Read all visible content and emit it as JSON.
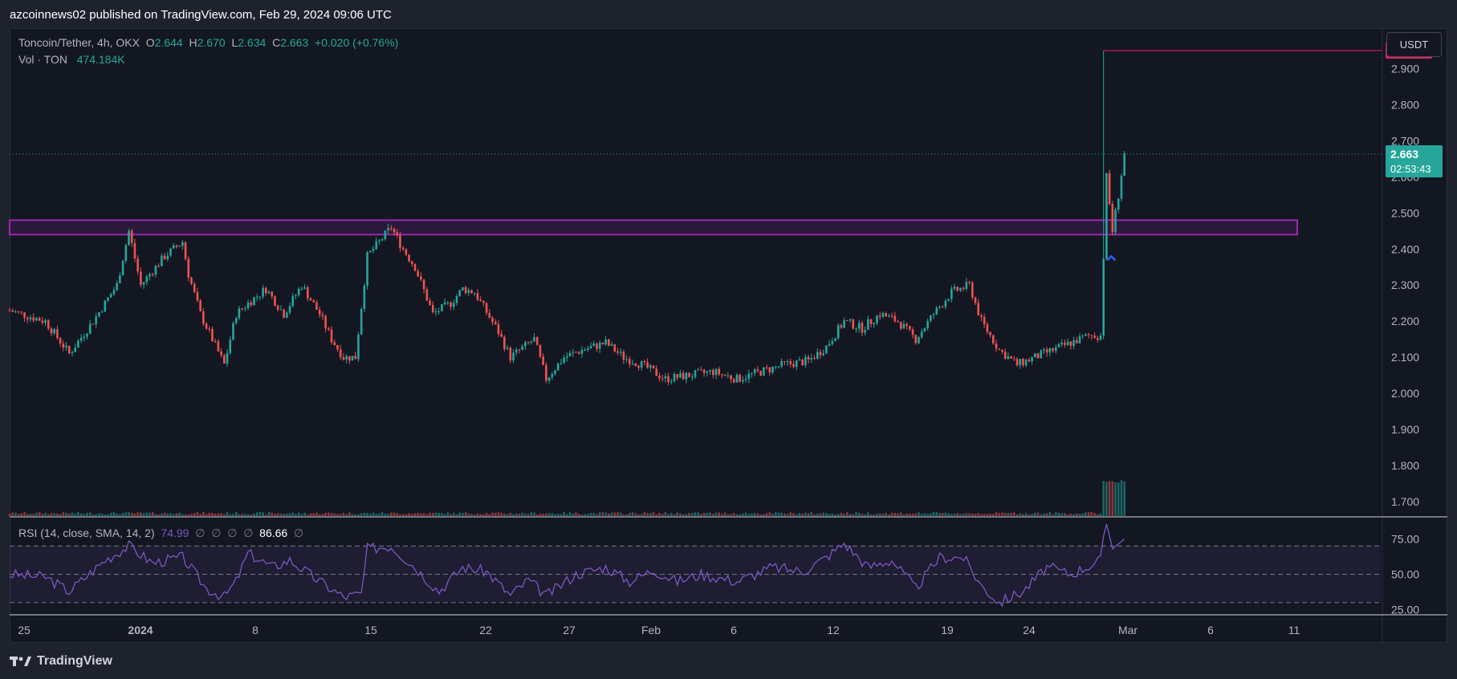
{
  "header": {
    "published_text": "azcoinnews02 published on TradingView.com, Feb 29, 2024 09:06 UTC"
  },
  "legend": {
    "symbol": "Toncoin/Tether, 4h, OKX",
    "o_label": "O",
    "o_value": "2.644",
    "h_label": "H",
    "h_value": "2.670",
    "l_label": "L",
    "l_value": "2.634",
    "c_label": "C",
    "c_value": "2.663",
    "change": "+0.020 (+0.76%)",
    "vol_label": "Vol · TON",
    "vol_value": "474.184K"
  },
  "rsi_legend": {
    "label": "RSI (14, close, SMA, 14, 2)",
    "value": "74.99",
    "empty_marks": [
      "∅",
      "∅",
      "∅",
      "∅"
    ],
    "sma_value": "86.66",
    "last_mark": "∅"
  },
  "unit_button": "USDT",
  "footer": {
    "brand": "TradingView"
  },
  "colors": {
    "up": "#26a69a",
    "down": "#ef5350",
    "zone": "#9c27b0",
    "target": "#e91e63",
    "rsi_line": "#7e57c2",
    "arrow": "#2962ff"
  },
  "chart_data": {
    "type": "candlestick",
    "price_axis": {
      "ylim": [
        1.66,
        3.01
      ],
      "ticks": [
        "1.700",
        "1.800",
        "1.900",
        "2.000",
        "2.100",
        "2.200",
        "2.300",
        "2.400",
        "2.500",
        "2.600",
        "2.700",
        "2.800",
        "2.900"
      ],
      "current_price": "2.663",
      "countdown": "02:53:43",
      "target_price": "2.950"
    },
    "time_axis": {
      "labels": [
        "25",
        "2024",
        "8",
        "15",
        "22",
        "27",
        "Feb",
        "6",
        "12",
        "19",
        "24",
        "Mar",
        "6",
        "11"
      ],
      "bold_labels": [
        "2024"
      ]
    },
    "resistance_zone": {
      "from": 2.44,
      "to": 2.48
    },
    "target_level": 2.95,
    "rsi_axis": {
      "ylim": [
        22,
        90
      ],
      "ticks": [
        "25.00",
        "50.00",
        "75.00"
      ],
      "upper_band": 70,
      "middle_band": 50,
      "lower_band": 30
    },
    "price_series": [
      {
        "t": 0,
        "p": 2.23
      },
      {
        "t": 6,
        "p": 2.2
      },
      {
        "t": 10,
        "p": 2.11
      },
      {
        "t": 14,
        "p": 2.2
      },
      {
        "t": 18,
        "p": 2.3
      },
      {
        "t": 20,
        "p": 2.45
      },
      {
        "t": 22,
        "p": 2.3
      },
      {
        "t": 26,
        "p": 2.38
      },
      {
        "t": 29,
        "p": 2.42
      },
      {
        "t": 30,
        "p": 2.33
      },
      {
        "t": 32,
        "p": 2.22
      },
      {
        "t": 36,
        "p": 2.08
      },
      {
        "t": 38,
        "p": 2.22
      },
      {
        "t": 40,
        "p": 2.25
      },
      {
        "t": 43,
        "p": 2.29
      },
      {
        "t": 46,
        "p": 2.22
      },
      {
        "t": 49,
        "p": 2.3
      },
      {
        "t": 52,
        "p": 2.22
      },
      {
        "t": 54,
        "p": 2.15
      },
      {
        "t": 56,
        "p": 2.1
      },
      {
        "t": 58,
        "p": 2.1
      },
      {
        "t": 60,
        "p": 2.38
      },
      {
        "t": 62,
        "p": 2.42
      },
      {
        "t": 64,
        "p": 2.46
      },
      {
        "t": 66,
        "p": 2.4
      },
      {
        "t": 68,
        "p": 2.35
      },
      {
        "t": 71,
        "p": 2.22
      },
      {
        "t": 74,
        "p": 2.25
      },
      {
        "t": 76,
        "p": 2.29
      },
      {
        "t": 78,
        "p": 2.28
      },
      {
        "t": 82,
        "p": 2.17
      },
      {
        "t": 84,
        "p": 2.1
      },
      {
        "t": 88,
        "p": 2.15
      },
      {
        "t": 90,
        "p": 2.04
      },
      {
        "t": 93,
        "p": 2.1
      },
      {
        "t": 96,
        "p": 2.12
      },
      {
        "t": 100,
        "p": 2.14
      },
      {
        "t": 103,
        "p": 2.1
      },
      {
        "t": 106,
        "p": 2.08
      },
      {
        "t": 110,
        "p": 2.04
      },
      {
        "t": 114,
        "p": 2.05
      },
      {
        "t": 118,
        "p": 2.06
      },
      {
        "t": 122,
        "p": 2.04
      },
      {
        "t": 126,
        "p": 2.06
      },
      {
        "t": 130,
        "p": 2.08
      },
      {
        "t": 134,
        "p": 2.09
      },
      {
        "t": 137,
        "p": 2.13
      },
      {
        "t": 140,
        "p": 2.2
      },
      {
        "t": 143,
        "p": 2.18
      },
      {
        "t": 146,
        "p": 2.22
      },
      {
        "t": 149,
        "p": 2.2
      },
      {
        "t": 152,
        "p": 2.15
      },
      {
        "t": 155,
        "p": 2.22
      },
      {
        "t": 158,
        "p": 2.28
      },
      {
        "t": 161,
        "p": 2.3
      },
      {
        "t": 163,
        "p": 2.2
      },
      {
        "t": 166,
        "p": 2.12
      },
      {
        "t": 169,
        "p": 2.08
      },
      {
        "t": 172,
        "p": 2.1
      },
      {
        "t": 175,
        "p": 2.12
      },
      {
        "t": 178,
        "p": 2.14
      },
      {
        "t": 181,
        "p": 2.16
      },
      {
        "t": 183,
        "p": 2.16
      },
      {
        "t": 184,
        "p": 2.6
      },
      {
        "t": 185,
        "p": 2.45
      },
      {
        "t": 186,
        "p": 2.55
      },
      {
        "t": 187,
        "p": 2.663
      }
    ],
    "rsi_series": [
      {
        "t": 0,
        "r": 50
      },
      {
        "t": 6,
        "r": 48
      },
      {
        "t": 10,
        "r": 38
      },
      {
        "t": 16,
        "r": 60
      },
      {
        "t": 20,
        "r": 70
      },
      {
        "t": 24,
        "r": 58
      },
      {
        "t": 29,
        "r": 62
      },
      {
        "t": 33,
        "r": 40
      },
      {
        "t": 36,
        "r": 34
      },
      {
        "t": 38,
        "r": 45
      },
      {
        "t": 40,
        "r": 65
      },
      {
        "t": 44,
        "r": 55
      },
      {
        "t": 47,
        "r": 60
      },
      {
        "t": 52,
        "r": 45
      },
      {
        "t": 56,
        "r": 34
      },
      {
        "t": 59,
        "r": 36
      },
      {
        "t": 60,
        "r": 68
      },
      {
        "t": 64,
        "r": 70
      },
      {
        "t": 68,
        "r": 55
      },
      {
        "t": 72,
        "r": 38
      },
      {
        "t": 76,
        "r": 55
      },
      {
        "t": 80,
        "r": 52
      },
      {
        "t": 84,
        "r": 35
      },
      {
        "t": 87,
        "r": 46
      },
      {
        "t": 90,
        "r": 35
      },
      {
        "t": 95,
        "r": 50
      },
      {
        "t": 100,
        "r": 55
      },
      {
        "t": 104,
        "r": 45
      },
      {
        "t": 108,
        "r": 53
      },
      {
        "t": 112,
        "r": 45
      },
      {
        "t": 116,
        "r": 50
      },
      {
        "t": 122,
        "r": 45
      },
      {
        "t": 128,
        "r": 55
      },
      {
        "t": 133,
        "r": 52
      },
      {
        "t": 137,
        "r": 62
      },
      {
        "t": 140,
        "r": 72
      },
      {
        "t": 144,
        "r": 55
      },
      {
        "t": 148,
        "r": 60
      },
      {
        "t": 152,
        "r": 40
      },
      {
        "t": 156,
        "r": 62
      },
      {
        "t": 160,
        "r": 62
      },
      {
        "t": 163,
        "r": 42
      },
      {
        "t": 166,
        "r": 30
      },
      {
        "t": 170,
        "r": 38
      },
      {
        "t": 174,
        "r": 55
      },
      {
        "t": 178,
        "r": 50
      },
      {
        "t": 183,
        "r": 60
      },
      {
        "t": 184,
        "r": 86.66
      },
      {
        "t": 185,
        "r": 68
      },
      {
        "t": 187,
        "r": 74.99
      }
    ]
  }
}
